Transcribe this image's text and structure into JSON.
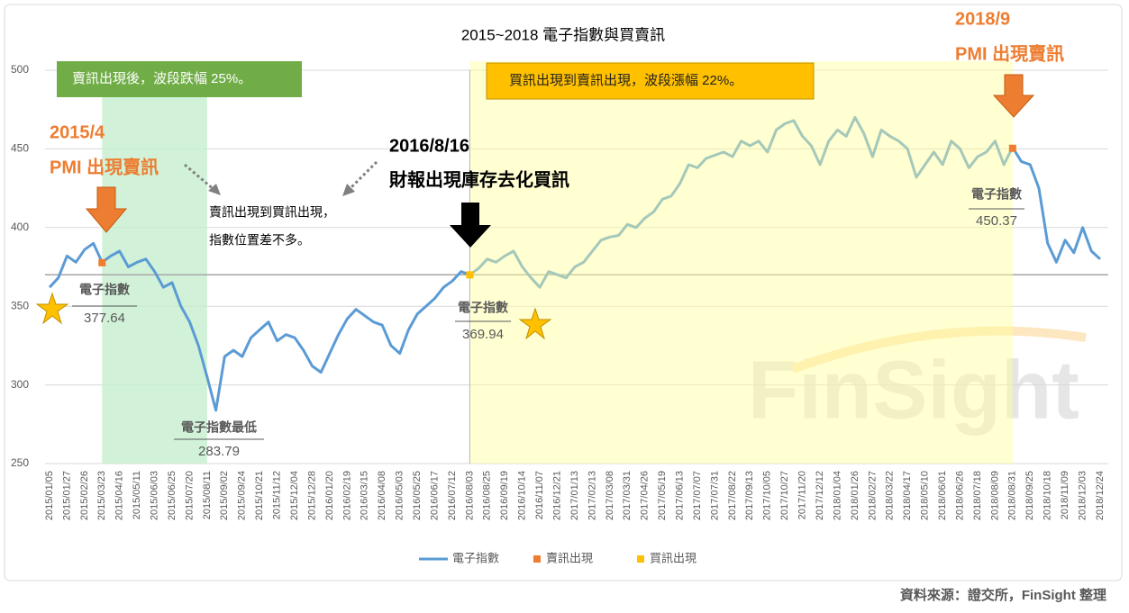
{
  "chart_data": {
    "type": "line",
    "title": "2015~2018 電子指數與買賣訊",
    "categories": [
      "2015/01/05",
      null,
      "2015/01/27",
      null,
      "2015/02/26",
      null,
      "2015/03/23",
      null,
      "2015/04/16",
      null,
      "2015/05/11",
      null,
      "2015/06/03",
      null,
      "2015/06/25",
      null,
      "2015/07/20",
      null,
      "2015/08/11",
      null,
      "2015/09/02",
      null,
      "2015/09/24",
      null,
      "2015/10/21",
      null,
      "2015/11/12",
      null,
      "2015/12/04",
      null,
      "2015/12/28",
      null,
      "2016/01/20",
      null,
      "2016/02/19",
      null,
      "2016/03/15",
      null,
      "2016/04/08",
      null,
      "2016/05/03",
      null,
      "2016/05/25",
      null,
      "2016/06/17",
      null,
      "2016/07/12",
      null,
      "2016/08/03",
      null,
      "2016/08/25",
      null,
      "2016/09/19",
      null,
      "2016/10/14",
      null,
      "2016/11/07",
      null,
      "2016/12/21",
      null,
      "2017/01/13",
      null,
      "2017/02/13",
      null,
      "2017/03/08",
      null,
      "2017/03/31",
      null,
      "2017/04/26",
      null,
      "2017/05/19",
      null,
      "2017/06/13",
      null,
      "2017/07/07",
      null,
      "2017/07/31",
      null,
      "2017/08/22",
      null,
      "2017/09/13",
      null,
      "2017/10/05",
      null,
      "2017/10/27",
      null,
      "2017/11/20",
      null,
      "2017/12/12",
      null,
      "2018/01/04",
      null,
      "2018/01/26",
      null,
      "2018/02/27",
      null,
      "2018/03/22",
      null,
      "2018/04/17",
      null,
      "2018/05/10",
      null,
      "2018/06/01",
      null,
      "2018/06/26",
      null,
      "2018/07/18",
      null,
      "2018/08/09",
      null,
      "2018/08/31",
      null,
      "2018/09/25",
      null,
      "2018/10/18",
      null,
      "2018/11/09",
      null,
      "2018/12/03",
      null,
      "2018/12/24"
    ],
    "series": [
      {
        "name": "電子指數",
        "color": "#5b9bd5",
        "values": [
          362,
          368,
          382,
          378,
          386,
          390,
          378,
          382,
          385,
          375,
          378,
          380,
          372,
          362,
          365,
          350,
          340,
          325,
          305,
          283.79,
          318,
          322,
          318,
          330,
          335,
          340,
          328,
          332,
          330,
          322,
          312,
          308,
          320,
          332,
          342,
          348,
          344,
          340,
          338,
          325,
          320,
          335,
          345,
          350,
          355,
          362,
          366,
          372,
          370,
          374,
          380,
          378,
          382,
          385,
          375,
          368,
          362,
          372,
          370,
          368,
          375,
          378,
          385,
          392,
          394,
          395,
          402,
          400,
          406,
          410,
          418,
          420,
          428,
          440,
          438,
          444,
          446,
          448,
          445,
          455,
          452,
          455,
          448,
          462,
          466,
          468,
          458,
          452,
          440,
          455,
          462,
          458,
          470,
          460,
          445,
          462,
          458,
          455,
          450,
          432,
          440,
          448,
          440,
          455,
          450,
          438,
          445,
          448,
          455,
          440,
          451,
          442,
          440,
          425,
          390,
          378,
          392,
          384,
          400,
          385,
          380
        ]
      },
      {
        "name": "賣訊出現",
        "color": "#ed7d31",
        "values": [
          null,
          null,
          null,
          null,
          null,
          null,
          377.64,
          null,
          null,
          null,
          null,
          null,
          null,
          null,
          null,
          null,
          null,
          null,
          null,
          null,
          null,
          null,
          null,
          null,
          null,
          null,
          null,
          null,
          null,
          null,
          null,
          null,
          null,
          null,
          null,
          null,
          null,
          null,
          null,
          null,
          null,
          null,
          null,
          null,
          null,
          null,
          null,
          null,
          null,
          null,
          null,
          null,
          null,
          null,
          null,
          null,
          null,
          null,
          null,
          null,
          null,
          null,
          null,
          null,
          null,
          null,
          null,
          null,
          null,
          null,
          null,
          null,
          null,
          null,
          null,
          null,
          null,
          null,
          null,
          null,
          null,
          null,
          null,
          null,
          null,
          null,
          null,
          null,
          null,
          null,
          null,
          null,
          null,
          null,
          null,
          null,
          null,
          null,
          null,
          null,
          null,
          null,
          null,
          null,
          null,
          null,
          null,
          null,
          null,
          null,
          450.37,
          null,
          null,
          null,
          null,
          null,
          null,
          null,
          null,
          null,
          null
        ]
      },
      {
        "name": "買訊出現",
        "color": "#ffc000",
        "values": [
          null,
          null,
          null,
          null,
          null,
          null,
          null,
          null,
          null,
          null,
          null,
          null,
          null,
          null,
          null,
          null,
          null,
          null,
          null,
          null,
          null,
          null,
          null,
          null,
          null,
          null,
          null,
          null,
          null,
          null,
          null,
          null,
          null,
          null,
          null,
          null,
          null,
          null,
          null,
          null,
          null,
          null,
          null,
          null,
          null,
          null,
          null,
          null,
          369.94,
          null,
          null,
          null,
          null,
          null,
          null,
          null,
          null,
          null,
          null,
          null,
          null,
          null,
          null,
          null,
          null,
          null,
          null,
          null,
          null,
          null,
          null,
          null,
          null,
          null,
          null,
          null,
          null,
          null,
          null,
          null,
          null,
          null,
          null,
          null,
          null,
          null,
          null,
          null,
          null,
          null,
          null,
          null,
          null,
          null,
          null,
          null,
          null,
          null,
          null,
          null,
          null,
          null,
          null,
          null,
          null,
          null,
          null,
          null,
          null,
          null,
          null,
          null,
          null,
          null,
          null,
          null,
          null,
          null,
          null,
          null,
          null
        ]
      }
    ],
    "ylim": [
      250,
      500
    ],
    "yticks": [
      250,
      300,
      350,
      400,
      450,
      500
    ],
    "grid": true,
    "reference_line": 370,
    "bands": [
      {
        "start": "2015/03/23",
        "end": "2015/08/11",
        "color": "#c6efce"
      },
      {
        "start": "2016/08/03",
        "end": "2018/08/31",
        "color": "#ffff99"
      }
    ],
    "annotations": {
      "green_box": "賣訊出現後，波段跌幅 25%。",
      "yellow_box": "買訊出現到賣訊出現，波段漲幅 22%。",
      "sell_2015_date": "2015/4",
      "sell_2015_text": "PMI 出現賣訊",
      "buy_2016_date": "2016/8/16",
      "buy_2016_text": "財報出現庫存去化買訊",
      "sell_2018_date": "2018/9",
      "sell_2018_text": "PMI 出現賣訊",
      "note_line1": "賣訊出現到買訊出現，",
      "note_line2": "指數位置差不多。",
      "low_label": "電子指數最低"
    },
    "watermark": "FinSight",
    "source": "資料來源：證交所，FinSight 整理"
  }
}
